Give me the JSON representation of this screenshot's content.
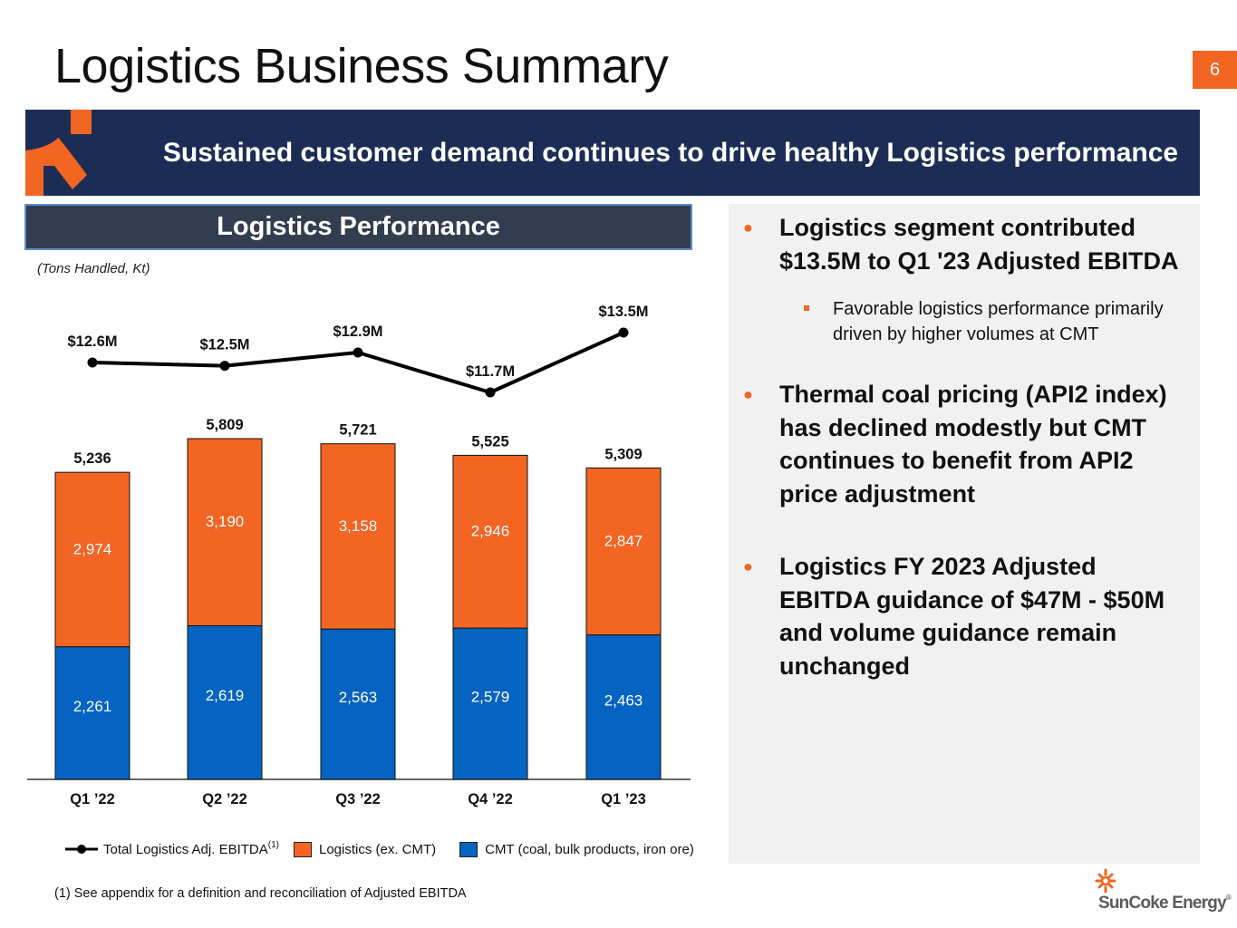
{
  "page": {
    "title": "Logistics Business Summary",
    "page_number": "6",
    "banner": "Sustained customer demand continues to drive healthy Logistics performance",
    "colors": {
      "orange": "#f26522",
      "navy": "#1c2d55",
      "blue": "#0563c1",
      "panel_gray": "#f1f1f1"
    }
  },
  "chart_header": "Logistics Performance",
  "units_note": "(Tons Handled, Kt)",
  "legend": {
    "line": "Total Logistics Adj. EBITDA",
    "line_sup": "(1)",
    "orange": "Logistics (ex. CMT)",
    "blue": "CMT (coal, bulk products, iron ore)"
  },
  "footnote": "(1)  See appendix for a definition and reconciliation of Adjusted EBITDA",
  "chart_data": {
    "type": "bar",
    "stacked": true,
    "title": "Logistics Performance",
    "subtitle": "(Tons Handled, Kt)",
    "xlabel": "",
    "ylabel": "",
    "categories": [
      "Q1 ’22",
      "Q2 ’22",
      "Q3 ’22",
      "Q4 ’22",
      "Q1 ’23"
    ],
    "series": [
      {
        "name": "CMT (coal, bulk products, iron ore)",
        "type": "bar",
        "color": "#0563c1",
        "values": [
          2261,
          2619,
          2563,
          2579,
          2463
        ],
        "labels": [
          "2,261",
          "2,619",
          "2,563",
          "2,579",
          "2,463"
        ]
      },
      {
        "name": "Logistics (ex. CMT)",
        "type": "bar",
        "color": "#f26522",
        "values": [
          2974,
          3190,
          3158,
          2946,
          2847
        ],
        "labels": [
          "2,974",
          "3,190",
          "3,158",
          "2,946",
          "2,847"
        ]
      },
      {
        "name": "Total Logistics Adj. EBITDA",
        "type": "line",
        "color": "#000000",
        "unit": "$M",
        "values": [
          12.6,
          12.5,
          12.9,
          11.7,
          13.5
        ],
        "labels": [
          "$12.6M",
          "$12.5M",
          "$12.9M",
          "$11.7M",
          "$13.5M"
        ]
      }
    ],
    "totals": [
      5236,
      5809,
      5721,
      5525,
      5309
    ],
    "total_labels": [
      "5,236",
      "5,809",
      "5,721",
      "5,525",
      "5,309"
    ],
    "ylim": [
      0,
      6500
    ],
    "grid": false,
    "legend_position": "bottom"
  },
  "bullets": [
    {
      "text": "Logistics segment contributed $13.5M to Q1 '23 Adjusted EBITDA"
    },
    {
      "text": "Thermal coal pricing (API2 index) has declined modestly but CMT continues to benefit from API2 price adjustment"
    },
    {
      "text": "Logistics FY 2023 Adjusted EBITDA guidance of $47M - $50M and volume guidance remain unchanged"
    }
  ],
  "sub_bullets": [
    {
      "text": "Favorable logistics performance primarily driven by higher volumes at CMT"
    }
  ],
  "brand": {
    "name": "SunCoke Energy",
    "reg": "®"
  }
}
